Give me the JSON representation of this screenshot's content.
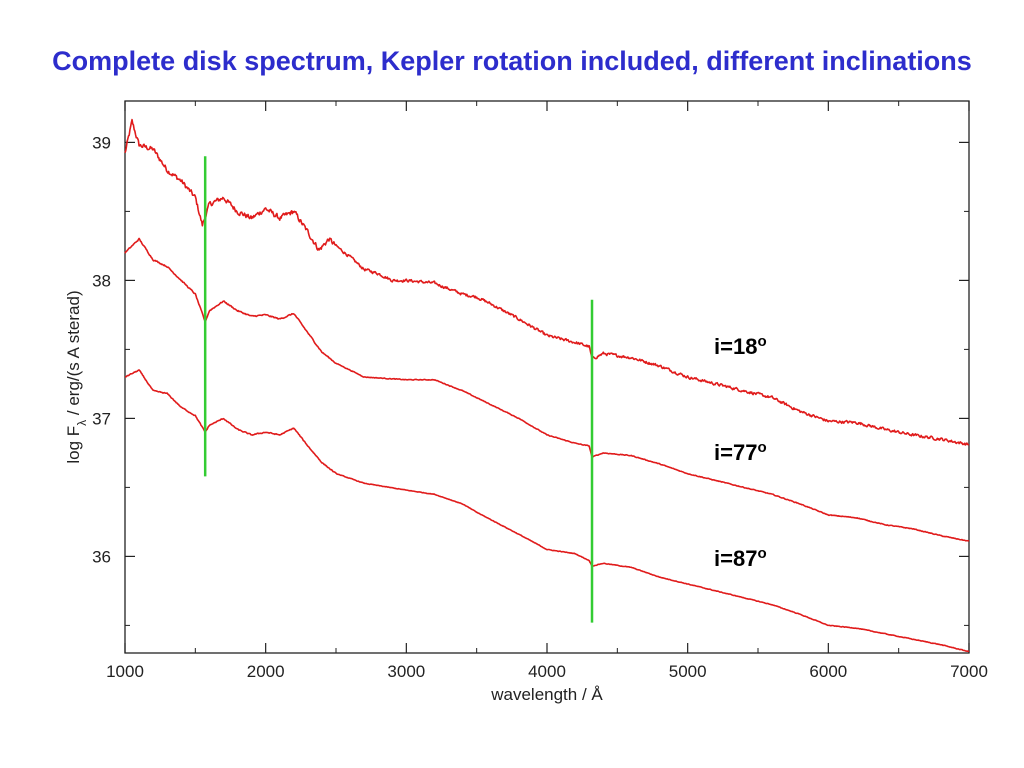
{
  "slide": {
    "title": "Complete disk spectrum, Kepler rotation included, different inclinations"
  },
  "chart_data": {
    "type": "line",
    "xlabel": "wavelength / Å",
    "ylabel": "log F_λ / erg/(s A sterad)",
    "xlim": [
      1000,
      7000
    ],
    "ylim": [
      35.3,
      39.3
    ],
    "x_ticks": [
      1000,
      2000,
      3000,
      4000,
      5000,
      6000,
      7000
    ],
    "y_ticks": [
      36,
      37,
      38,
      39
    ],
    "grid": false,
    "series_color": "#e01b1b",
    "marker_color": "#33cc33",
    "series": [
      {
        "name": "i=18°",
        "label_main": "i=18",
        "label_sup": "o",
        "noise": 0.06,
        "points": [
          [
            1000,
            38.92
          ],
          [
            1050,
            39.15
          ],
          [
            1100,
            38.98
          ],
          [
            1200,
            38.95
          ],
          [
            1300,
            38.8
          ],
          [
            1400,
            38.72
          ],
          [
            1500,
            38.6
          ],
          [
            1550,
            38.4
          ],
          [
            1600,
            38.55
          ],
          [
            1700,
            38.6
          ],
          [
            1800,
            38.5
          ],
          [
            1900,
            38.45
          ],
          [
            2000,
            38.52
          ],
          [
            2100,
            38.45
          ],
          [
            2200,
            38.5
          ],
          [
            2300,
            38.35
          ],
          [
            2380,
            38.22
          ],
          [
            2450,
            38.3
          ],
          [
            2500,
            38.25
          ],
          [
            2600,
            38.17
          ],
          [
            2700,
            38.08
          ],
          [
            2800,
            38.05
          ],
          [
            2900,
            38.0
          ],
          [
            3000,
            38.0
          ],
          [
            3200,
            37.98
          ],
          [
            3400,
            37.9
          ],
          [
            3500,
            37.88
          ],
          [
            3600,
            37.83
          ],
          [
            3800,
            37.72
          ],
          [
            4000,
            37.6
          ],
          [
            4200,
            37.55
          ],
          [
            4300,
            37.52
          ],
          [
            4320,
            37.43
          ],
          [
            4400,
            37.47
          ],
          [
            4600,
            37.44
          ],
          [
            4800,
            37.38
          ],
          [
            5000,
            37.3
          ],
          [
            5200,
            37.25
          ],
          [
            5400,
            37.2
          ],
          [
            5600,
            37.15
          ],
          [
            5800,
            37.05
          ],
          [
            6000,
            36.98
          ],
          [
            6200,
            36.97
          ],
          [
            6400,
            36.92
          ],
          [
            6600,
            36.88
          ],
          [
            6800,
            36.85
          ],
          [
            7000,
            36.81
          ]
        ]
      },
      {
        "name": "i=77°",
        "label_main": "i=77",
        "label_sup": "o",
        "noise": 0.015,
        "points": [
          [
            1000,
            38.2
          ],
          [
            1100,
            38.3
          ],
          [
            1200,
            38.15
          ],
          [
            1300,
            38.1
          ],
          [
            1400,
            38.0
          ],
          [
            1500,
            37.9
          ],
          [
            1570,
            37.7
          ],
          [
            1600,
            37.78
          ],
          [
            1700,
            37.85
          ],
          [
            1800,
            37.78
          ],
          [
            1900,
            37.74
          ],
          [
            2000,
            37.75
          ],
          [
            2100,
            37.72
          ],
          [
            2200,
            37.76
          ],
          [
            2300,
            37.62
          ],
          [
            2400,
            37.48
          ],
          [
            2500,
            37.4
          ],
          [
            2700,
            37.3
          ],
          [
            3000,
            37.28
          ],
          [
            3200,
            37.28
          ],
          [
            3400,
            37.2
          ],
          [
            3500,
            37.15
          ],
          [
            3800,
            37.0
          ],
          [
            4000,
            36.88
          ],
          [
            4200,
            36.82
          ],
          [
            4300,
            36.8
          ],
          [
            4320,
            36.72
          ],
          [
            4400,
            36.75
          ],
          [
            4600,
            36.73
          ],
          [
            4800,
            36.67
          ],
          [
            5000,
            36.6
          ],
          [
            5200,
            36.55
          ],
          [
            5400,
            36.5
          ],
          [
            5600,
            36.45
          ],
          [
            5800,
            36.38
          ],
          [
            6000,
            36.3
          ],
          [
            6200,
            36.28
          ],
          [
            6400,
            36.23
          ],
          [
            6600,
            36.2
          ],
          [
            6800,
            36.15
          ],
          [
            7000,
            36.11
          ]
        ]
      },
      {
        "name": "i=87°",
        "label_main": "i=87",
        "label_sup": "o",
        "noise": 0.012,
        "points": [
          [
            1000,
            37.3
          ],
          [
            1100,
            37.35
          ],
          [
            1200,
            37.2
          ],
          [
            1300,
            37.18
          ],
          [
            1400,
            37.08
          ],
          [
            1500,
            37.02
          ],
          [
            1570,
            36.9
          ],
          [
            1600,
            36.95
          ],
          [
            1700,
            37.0
          ],
          [
            1800,
            36.92
          ],
          [
            1900,
            36.88
          ],
          [
            2000,
            36.9
          ],
          [
            2100,
            36.88
          ],
          [
            2200,
            36.93
          ],
          [
            2300,
            36.8
          ],
          [
            2400,
            36.68
          ],
          [
            2500,
            36.6
          ],
          [
            2700,
            36.53
          ],
          [
            3000,
            36.48
          ],
          [
            3200,
            36.45
          ],
          [
            3400,
            36.38
          ],
          [
            3500,
            36.32
          ],
          [
            3800,
            36.16
          ],
          [
            4000,
            36.05
          ],
          [
            4200,
            36.02
          ],
          [
            4300,
            35.97
          ],
          [
            4320,
            35.93
          ],
          [
            4400,
            35.95
          ],
          [
            4600,
            35.92
          ],
          [
            4800,
            35.85
          ],
          [
            5000,
            35.8
          ],
          [
            5200,
            35.75
          ],
          [
            5400,
            35.7
          ],
          [
            5600,
            35.65
          ],
          [
            5800,
            35.58
          ],
          [
            6000,
            35.5
          ],
          [
            6200,
            35.48
          ],
          [
            6400,
            35.44
          ],
          [
            6600,
            35.4
          ],
          [
            6800,
            35.36
          ],
          [
            7000,
            35.31
          ]
        ]
      }
    ],
    "vertical_markers": [
      {
        "x": 1570,
        "y_range": [
          36.58,
          38.9
        ]
      },
      {
        "x": 4320,
        "y_range": [
          35.52,
          37.86
        ]
      }
    ]
  }
}
